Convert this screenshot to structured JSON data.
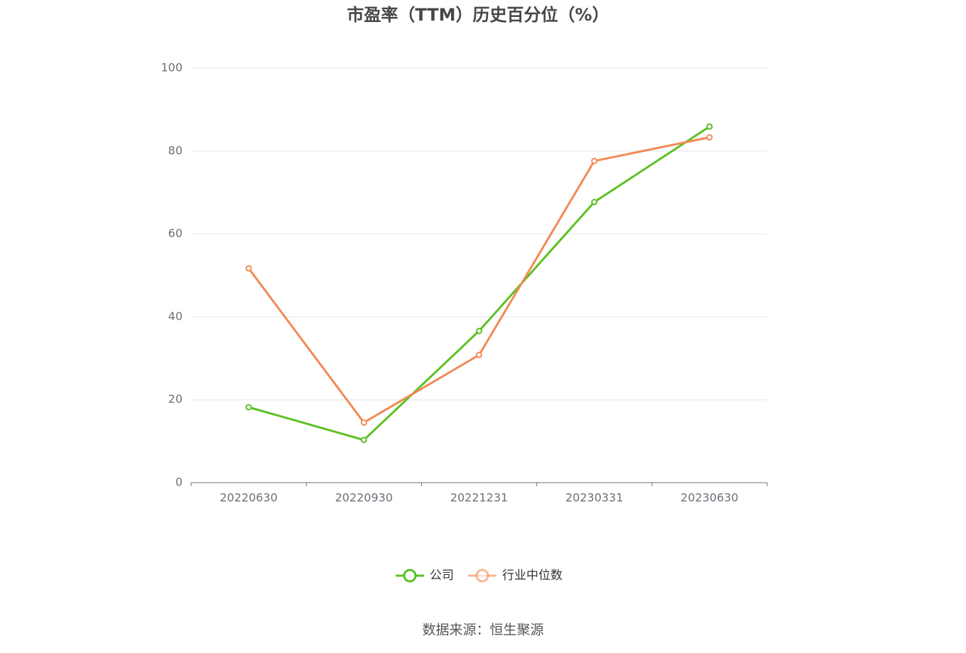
{
  "chart_data": {
    "type": "line",
    "title": "市盈率（TTM）历史百分位（%）",
    "categories": [
      "20220630",
      "20220930",
      "20221231",
      "20230331",
      "20230630"
    ],
    "series": [
      {
        "name": "公司",
        "color": "#5cc123",
        "values": [
          18.2,
          10.3,
          36.6,
          67.7,
          85.9
        ]
      },
      {
        "name": "行业中位数",
        "color": "#f28a56",
        "values": [
          51.7,
          14.5,
          30.8,
          77.6,
          83.3
        ]
      }
    ],
    "ylim": [
      0,
      100
    ],
    "yticks": [
      0,
      20,
      40,
      60,
      80,
      100
    ],
    "grid": true,
    "legend": "bottom",
    "source": "数据来源：恒生聚源"
  }
}
